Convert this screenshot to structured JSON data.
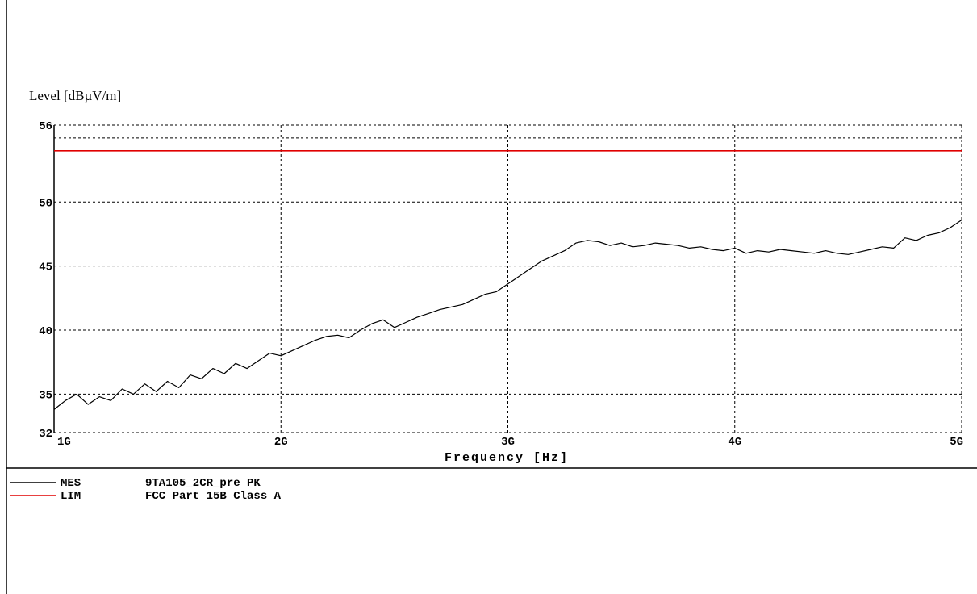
{
  "chart_data": {
    "type": "line",
    "ylabel": "Level [dBµV/m]",
    "xlabel": "Frequency [Hz]",
    "xlim": [
      1,
      5
    ],
    "ylim": [
      32,
      56
    ],
    "y_ticks": [
      {
        "value": 56,
        "label": "56"
      },
      {
        "value": 50,
        "label": "50"
      },
      {
        "value": 45,
        "label": "45"
      },
      {
        "value": 40,
        "label": "40"
      },
      {
        "value": 35,
        "label": "35"
      },
      {
        "value": 32,
        "label": "32"
      }
    ],
    "x_ticks": [
      {
        "value": 1,
        "label": "1G"
      },
      {
        "value": 2,
        "label": "2G"
      },
      {
        "value": 3,
        "label": "3G"
      },
      {
        "value": 4,
        "label": "4G"
      },
      {
        "value": 5,
        "label": "5G"
      }
    ],
    "extra_grid_y": [
      55
    ],
    "grid": true,
    "grid_style": "dashed",
    "series": [
      {
        "name": "9TA105_2CR_pre PK",
        "legend_code": "MES",
        "color": "#000000",
        "x": [
          1.0,
          1.05,
          1.1,
          1.15,
          1.2,
          1.25,
          1.3,
          1.35,
          1.4,
          1.45,
          1.5,
          1.55,
          1.6,
          1.65,
          1.7,
          1.75,
          1.8,
          1.85,
          1.9,
          1.95,
          2.0,
          2.05,
          2.1,
          2.15,
          2.2,
          2.25,
          2.3,
          2.35,
          2.4,
          2.45,
          2.5,
          2.55,
          2.6,
          2.65,
          2.7,
          2.75,
          2.8,
          2.85,
          2.9,
          2.95,
          3.0,
          3.05,
          3.1,
          3.15,
          3.2,
          3.25,
          3.3,
          3.35,
          3.4,
          3.45,
          3.5,
          3.55,
          3.6,
          3.65,
          3.7,
          3.75,
          3.8,
          3.85,
          3.9,
          3.95,
          4.0,
          4.05,
          4.1,
          4.15,
          4.2,
          4.25,
          4.3,
          4.35,
          4.4,
          4.45,
          4.5,
          4.55,
          4.6,
          4.65,
          4.7,
          4.75,
          4.8,
          4.85,
          4.9,
          4.95,
          5.0
        ],
        "values": [
          33.8,
          34.5,
          35.0,
          34.2,
          34.8,
          34.5,
          35.4,
          35.0,
          35.8,
          35.2,
          36.0,
          35.5,
          36.5,
          36.2,
          37.0,
          36.6,
          37.4,
          37.0,
          37.6,
          38.2,
          38.0,
          38.4,
          38.8,
          39.2,
          39.5,
          39.6,
          39.4,
          40.0,
          40.5,
          40.8,
          40.2,
          40.6,
          41.0,
          41.3,
          41.6,
          41.8,
          42.0,
          42.4,
          42.8,
          43.0,
          43.6,
          44.2,
          44.8,
          45.4,
          45.8,
          46.2,
          46.8,
          47.0,
          46.9,
          46.6,
          46.8,
          46.5,
          46.6,
          46.8,
          46.7,
          46.6,
          46.4,
          46.5,
          46.3,
          46.2,
          46.4,
          46.0,
          46.2,
          46.1,
          46.3,
          46.2,
          46.1,
          46.0,
          46.2,
          46.0,
          45.9,
          46.1,
          46.3,
          46.5,
          46.4,
          47.2,
          47.0,
          47.4,
          47.6,
          48.0,
          48.6
        ]
      },
      {
        "name": "FCC Part 15B Class A",
        "legend_code": "LIM",
        "color": "#e00000",
        "x": [
          1,
          5
        ],
        "values": [
          54.0,
          54.0
        ]
      }
    ]
  }
}
